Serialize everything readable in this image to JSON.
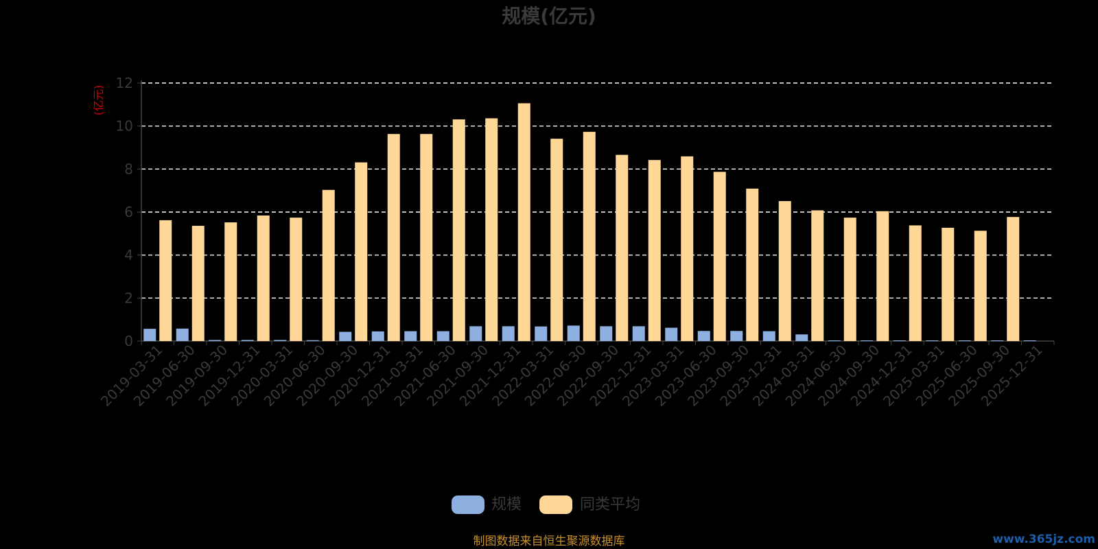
{
  "colors": {
    "background": "#000000",
    "series_scale": "#8eb0e0",
    "series_avg": "#ffd897",
    "grid": "#ffffff",
    "axis": "#444444",
    "text": "#3a3a3a",
    "unit_label": "#d40000",
    "source": "#c8902a",
    "watermark": "#1c5fa8"
  },
  "footer": {
    "source": "制图数据来自恒生聚源数据库",
    "watermark": "www.365jz.com"
  },
  "chart_data": {
    "type": "bar",
    "title": "规模(亿元)",
    "ylabel": "(亿元)",
    "xlabel": "",
    "ylim": [
      0,
      12
    ],
    "yticks": [
      "0",
      "2",
      "4",
      "6",
      "8",
      "10",
      "12"
    ],
    "grid": "horizontal dashed",
    "legend_position": "bottom",
    "categories": [
      "2019-03-31",
      "2019-06-30",
      "2019-09-30",
      "2019-12-31",
      "2020-03-31",
      "2020-06-30",
      "2020-09-30",
      "2020-12-31",
      "2021-03-31",
      "2021-06-30",
      "2021-09-30",
      "2021-12-31",
      "2022-03-31",
      "2022-06-30",
      "2022-09-30",
      "2022-12-31",
      "2023-03-31",
      "2023-06-30",
      "2023-09-30",
      "2023-12-31",
      "2024-03-31",
      "2024-06-30",
      "2024-09-30",
      "2024-12-31",
      "2025-03-31",
      "2025-06-30",
      "2025-09-30",
      "2025-12-31"
    ],
    "series": [
      {
        "name": "规模",
        "values": [
          0.57,
          0.58,
          0.05,
          0.05,
          0.05,
          0.04,
          0.43,
          0.45,
          0.46,
          0.46,
          0.69,
          0.69,
          0.68,
          0.72,
          0.69,
          0.69,
          0.62,
          0.47,
          0.47,
          0.46,
          0.31,
          0.02,
          0.02,
          0.02,
          0.02,
          0.02,
          0.02,
          0.02
        ]
      },
      {
        "name": "同类平均",
        "values": [
          5.62,
          5.36,
          5.52,
          5.84,
          5.74,
          7.03,
          8.31,
          9.63,
          9.63,
          10.31,
          10.36,
          11.06,
          9.41,
          9.73,
          8.66,
          8.42,
          8.59,
          7.87,
          7.09,
          6.51,
          6.08,
          5.74,
          6.04,
          5.38,
          5.27,
          5.13,
          5.77,
          null
        ]
      }
    ]
  }
}
